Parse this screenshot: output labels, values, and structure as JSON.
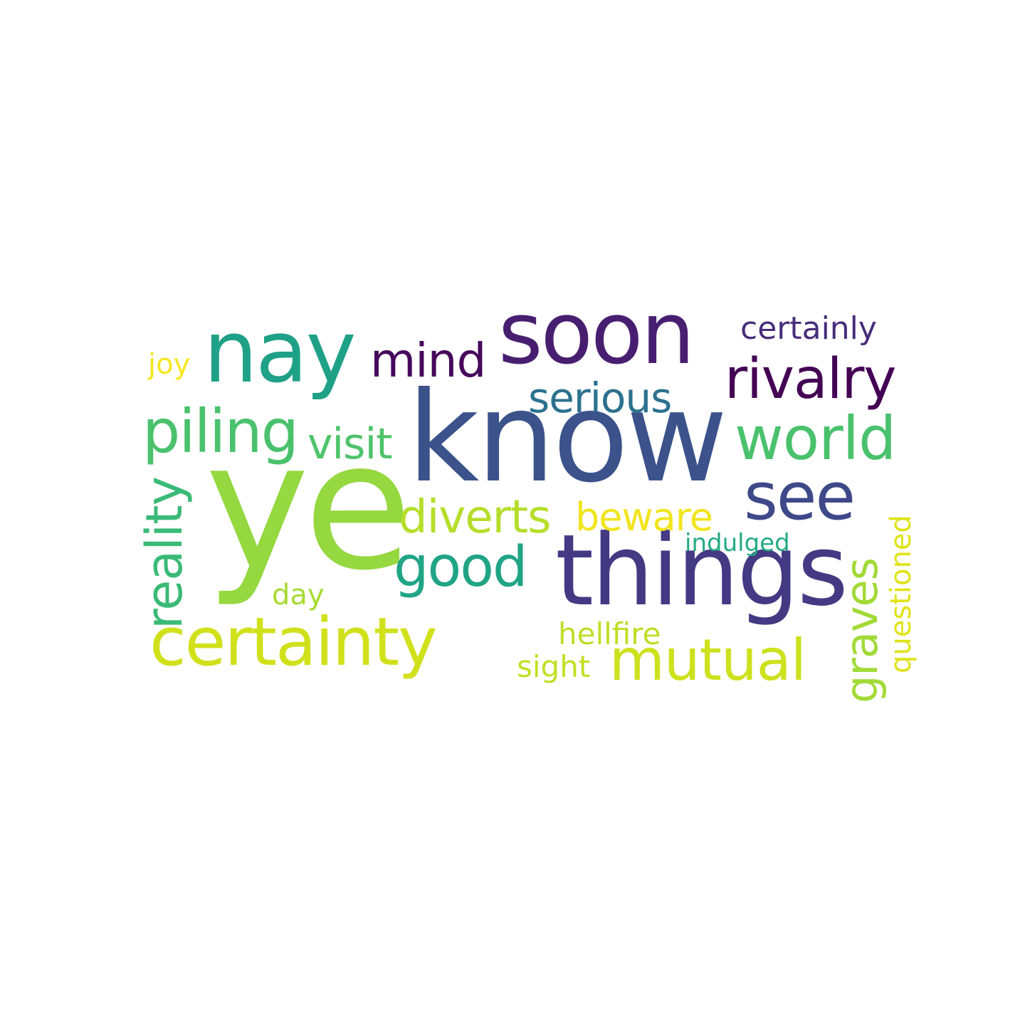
{
  "words": {
    "ye": {
      "text": "ye",
      "color": "#95d840"
    },
    "know": {
      "text": "know",
      "color": "#3b528b"
    },
    "things": {
      "text": "things",
      "color": "#443983"
    },
    "nay": {
      "text": "nay",
      "color": "#1fa187"
    },
    "soon": {
      "text": "soon",
      "color": "#481f70"
    },
    "see": {
      "text": "see",
      "color": "#3e4989"
    },
    "certainty": {
      "text": "certainty",
      "color": "#d0e11c"
    },
    "piling": {
      "text": "piling",
      "color": "#4ac16d"
    },
    "world": {
      "text": "world",
      "color": "#4ac16d"
    },
    "rivalry": {
      "text": "rivalry",
      "color": "#440154"
    },
    "mutual": {
      "text": "mutual",
      "color": "#cde11d"
    },
    "good": {
      "text": "good",
      "color": "#20a486"
    },
    "mind": {
      "text": "mind",
      "color": "#46085c"
    },
    "diverts": {
      "text": "diverts",
      "color": "#b5de2b"
    },
    "reality": {
      "text": "reality",
      "color": "#3aba76"
    },
    "graves": {
      "text": "graves",
      "color": "#a2da37"
    },
    "visit": {
      "text": "visit",
      "color": "#4ec36b"
    },
    "serious": {
      "text": "serious",
      "color": "#2c728e"
    },
    "beware": {
      "text": "beware",
      "color": "#f1e51d"
    },
    "certainly": {
      "text": "certainly",
      "color": "#472d7b"
    },
    "questioned": {
      "text": "questioned",
      "color": "#dfe318"
    },
    "hellfire": {
      "text": "hellfire",
      "color": "#bddf26"
    },
    "sight": {
      "text": "sight",
      "color": "#c2df23"
    },
    "day": {
      "text": "day",
      "color": "#a8db34"
    },
    "joy": {
      "text": "joy",
      "color": "#f6e620"
    },
    "indulged": {
      "text": "indulged",
      "color": "#25ab82"
    }
  }
}
